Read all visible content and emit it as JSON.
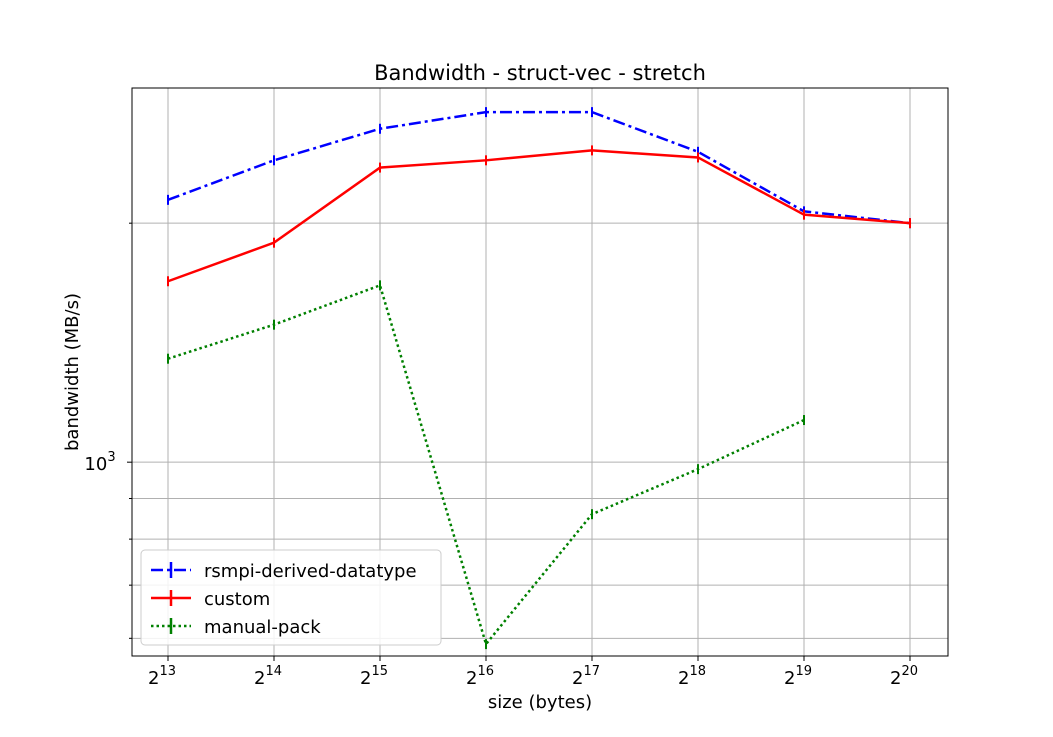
{
  "chart_data": {
    "type": "line",
    "title": "Bandwidth - struct-vec - stretch",
    "xlabel": "size (bytes)",
    "ylabel": "bandwidth (MB/s)",
    "x_scale": "log2",
    "y_scale": "log10",
    "grid": true,
    "legend_position": "lower-left",
    "x": [
      8192,
      16384,
      32768,
      65536,
      131072,
      262144,
      524288,
      1048576
    ],
    "x_tick_labels": [
      {
        "base": "2",
        "exp": "13"
      },
      {
        "base": "2",
        "exp": "14"
      },
      {
        "base": "2",
        "exp": "15"
      },
      {
        "base": "2",
        "exp": "16"
      },
      {
        "base": "2",
        "exp": "17"
      },
      {
        "base": "2",
        "exp": "18"
      },
      {
        "base": "2",
        "exp": "19"
      },
      {
        "base": "2",
        "exp": "20"
      }
    ],
    "y_tick_labels": [
      {
        "base": "10",
        "exp": "3",
        "value": 1000
      }
    ],
    "ylim": [
      570,
      2960
    ],
    "series": [
      {
        "name": "rsmpi-derived-datatype",
        "color": "#0000ff",
        "dash": "dashdot",
        "values": [
          2140,
          2400,
          2630,
          2760,
          2760,
          2460,
          2070,
          2000
        ]
      },
      {
        "name": "custom",
        "color": "#ff0000",
        "dash": "solid",
        "values": [
          1690,
          1890,
          2350,
          2400,
          2470,
          2420,
          2050,
          2000
        ]
      },
      {
        "name": "manual-pack",
        "color": "#008000",
        "dash": "dotted",
        "values": [
          1350,
          1490,
          1670,
          590,
          860,
          980,
          1130,
          null
        ]
      }
    ]
  }
}
